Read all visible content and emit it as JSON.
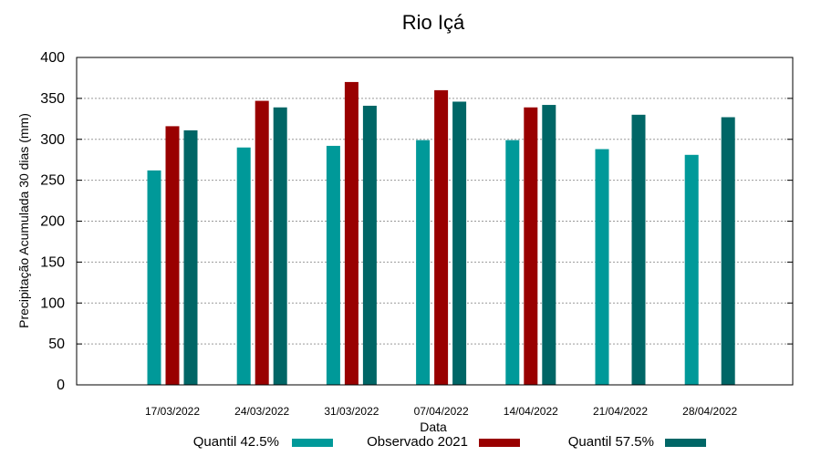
{
  "chart_data": {
    "type": "bar",
    "title": "Rio Içá",
    "xlabel": "Data",
    "ylabel": "Precipitação Acumulada 30 dias (mm)",
    "ylim": [
      0,
      400
    ],
    "yticks": [
      0,
      50,
      100,
      150,
      200,
      250,
      300,
      350,
      400
    ],
    "grid": true,
    "legend_position": "bottom",
    "categories": [
      "17/03/2022",
      "24/03/2022",
      "31/03/2022",
      "07/04/2022",
      "14/04/2022",
      "21/04/2022",
      "28/04/2022"
    ],
    "series": [
      {
        "name": "Quantil 42.5%",
        "color": "#009999",
        "values": [
          262,
          290,
          292,
          299,
          299,
          288,
          281
        ]
      },
      {
        "name": "Observado 2021",
        "color": "#990000",
        "values": [
          316,
          347,
          370,
          360,
          339,
          null,
          null
        ]
      },
      {
        "name": "Quantil 57.5%",
        "color": "#006666",
        "values": [
          311,
          339,
          341,
          346,
          342,
          330,
          327
        ]
      }
    ]
  }
}
